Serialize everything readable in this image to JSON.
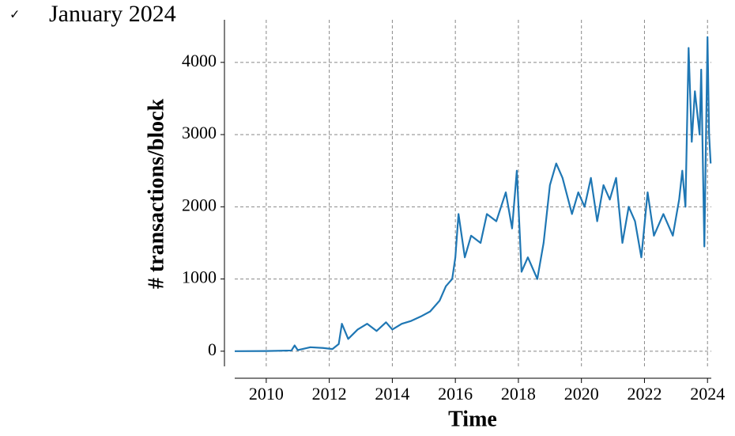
{
  "caption": {
    "mark": "✓",
    "text": "January 2024"
  },
  "chart_data": {
    "type": "line",
    "xlabel": "Time",
    "ylabel": "# transactions/block",
    "xlim": [
      2009,
      2024.12
    ],
    "ylim": [
      -210,
      4590
    ],
    "xticks": [
      2010,
      2012,
      2014,
      2016,
      2018,
      2020,
      2022,
      2024
    ],
    "yticks": [
      0,
      1000,
      2000,
      3000,
      4000
    ],
    "grid": true,
    "x": [
      2009.0,
      2010.0,
      2010.8,
      2010.9,
      2011.0,
      2011.4,
      2011.8,
      2012.1,
      2012.3,
      2012.4,
      2012.6,
      2012.9,
      2013.2,
      2013.5,
      2013.8,
      2014.0,
      2014.3,
      2014.6,
      2014.9,
      2015.2,
      2015.5,
      2015.7,
      2015.9,
      2016.0,
      2016.1,
      2016.3,
      2016.5,
      2016.8,
      2017.0,
      2017.3,
      2017.6,
      2017.8,
      2017.95,
      2018.1,
      2018.3,
      2018.6,
      2018.8,
      2019.0,
      2019.2,
      2019.4,
      2019.7,
      2019.9,
      2020.1,
      2020.3,
      2020.5,
      2020.7,
      2020.9,
      2021.1,
      2021.3,
      2021.5,
      2021.7,
      2021.9,
      2022.1,
      2022.3,
      2022.6,
      2022.9,
      2023.1,
      2023.2,
      2023.3,
      2023.4,
      2023.5,
      2023.6,
      2023.75,
      2023.8,
      2023.9,
      2024.0,
      2024.05,
      2024.1
    ],
    "series": [
      {
        "name": "transactions",
        "color": "#1f77b4",
        "values": [
          0,
          2,
          10,
          80,
          15,
          55,
          45,
          30,
          100,
          380,
          170,
          300,
          380,
          280,
          400,
          300,
          380,
          420,
          480,
          550,
          700,
          900,
          1000,
          1300,
          1900,
          1300,
          1600,
          1500,
          1900,
          1800,
          2200,
          1700,
          2500,
          1100,
          1300,
          1000,
          1500,
          2300,
          2600,
          2400,
          1900,
          2200,
          2000,
          2400,
          1800,
          2300,
          2100,
          2400,
          1500,
          2000,
          1800,
          1300,
          2200,
          1600,
          1900,
          1600,
          2100,
          2500,
          2000,
          4200,
          2900,
          3600,
          3000,
          3900,
          1450,
          4350,
          3000,
          2600
        ]
      }
    ]
  }
}
